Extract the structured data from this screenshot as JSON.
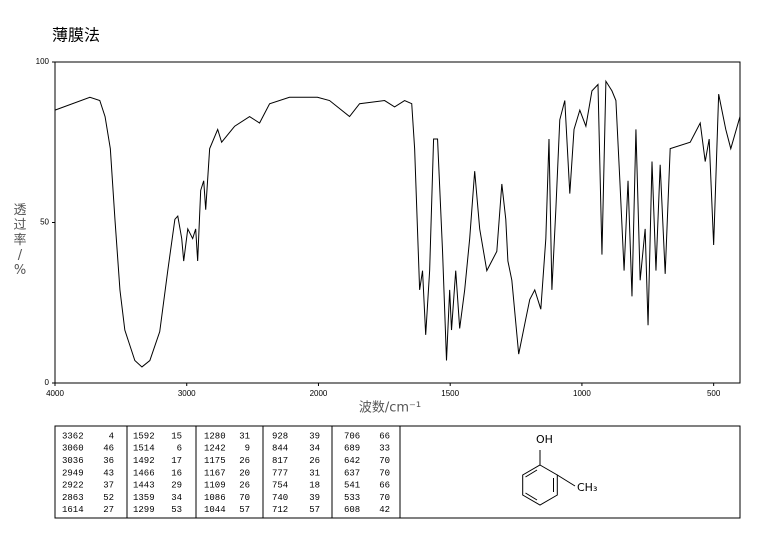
{
  "title": "薄膜法",
  "chart_data": {
    "type": "line",
    "color": "#000000",
    "x_label": "波数/cm⁻¹",
    "y_label": "透过率/%",
    "xlim": [
      4000,
      400
    ],
    "x_scale_change": {
      "at": 2000,
      "factor": 2
    },
    "xticks": [
      4000,
      3000,
      2000,
      1500,
      1000,
      500
    ],
    "ylim": [
      0,
      100
    ],
    "yticks": [
      0,
      50,
      100
    ],
    "grid": false,
    "x": [
      4000,
      3735,
      3660,
      3620,
      3580,
      3545,
      3507,
      3470,
      3394,
      3340,
      3280,
      3205,
      3144,
      3090,
      3068,
      3038,
      3023,
      2992,
      2955,
      2932,
      2917,
      2894,
      2871,
      2856,
      2826,
      2765,
      2735,
      2636,
      2523,
      2447,
      2371,
      2220,
      2106,
      2008,
      1958,
      1882,
      1844,
      1749,
      1711,
      1673,
      1646,
      1635,
      1616,
      1605,
      1593,
      1578,
      1563,
      1548,
      1529,
      1514,
      1502,
      1495,
      1479,
      1464,
      1445,
      1426,
      1407,
      1388,
      1361,
      1323,
      1304,
      1289,
      1281,
      1266,
      1240,
      1213,
      1198,
      1179,
      1156,
      1137,
      1125,
      1114,
      1099,
      1084,
      1065,
      1046,
      1030,
      1008,
      985,
      962,
      939,
      924,
      909,
      886,
      871,
      856,
      840,
      825,
      810,
      795,
      779,
      760,
      749,
      734,
      719,
      703,
      684,
      665,
      589,
      551,
      532,
      517,
      500,
      481,
      454,
      435,
      400
    ],
    "values": [
      85,
      89,
      88,
      83,
      73,
      51,
      29,
      16.5,
      7,
      5,
      7,
      16,
      35,
      51,
      52,
      45,
      38,
      48,
      45,
      48,
      38,
      60,
      63,
      54,
      73,
      79,
      75,
      80,
      83,
      81,
      87,
      89,
      89,
      89,
      88,
      83,
      87,
      88,
      86,
      88,
      87,
      73,
      29,
      35,
      15,
      35,
      76,
      76,
      41,
      7,
      29,
      16.5,
      35,
      17,
      29,
      45,
      66,
      48,
      35,
      41,
      62,
      51,
      38,
      32,
      9,
      20,
      26,
      29,
      23,
      45,
      76,
      29,
      54,
      82,
      88,
      59,
      79,
      85,
      80,
      91,
      93,
      40,
      94,
      91,
      88,
      63,
      35,
      63,
      27,
      79,
      32,
      48,
      18,
      69,
      35,
      68,
      34,
      73,
      75,
      81,
      69,
      76,
      43,
      90,
      79,
      73,
      83
    ]
  },
  "peaks": {
    "rows": [
      [
        3362,
        4,
        1592,
        15,
        1280,
        31,
        928,
        39,
        706,
        66
      ],
      [
        3060,
        46,
        1514,
        6,
        1242,
        9,
        844,
        34,
        689,
        33
      ],
      [
        3036,
        36,
        1492,
        17,
        1175,
        26,
        817,
        26,
        642,
        70
      ],
      [
        2949,
        43,
        1466,
        16,
        1167,
        20,
        777,
        31,
        637,
        70
      ],
      [
        2922,
        37,
        1443,
        29,
        1109,
        26,
        754,
        18,
        541,
        66
      ],
      [
        2863,
        52,
        1359,
        34,
        1086,
        70,
        740,
        39,
        533,
        70
      ],
      [
        1614,
        27,
        1299,
        53,
        1044,
        57,
        712,
        57,
        608,
        42
      ]
    ]
  },
  "structure": {
    "substituents": [
      "OH",
      "CH₃"
    ]
  }
}
